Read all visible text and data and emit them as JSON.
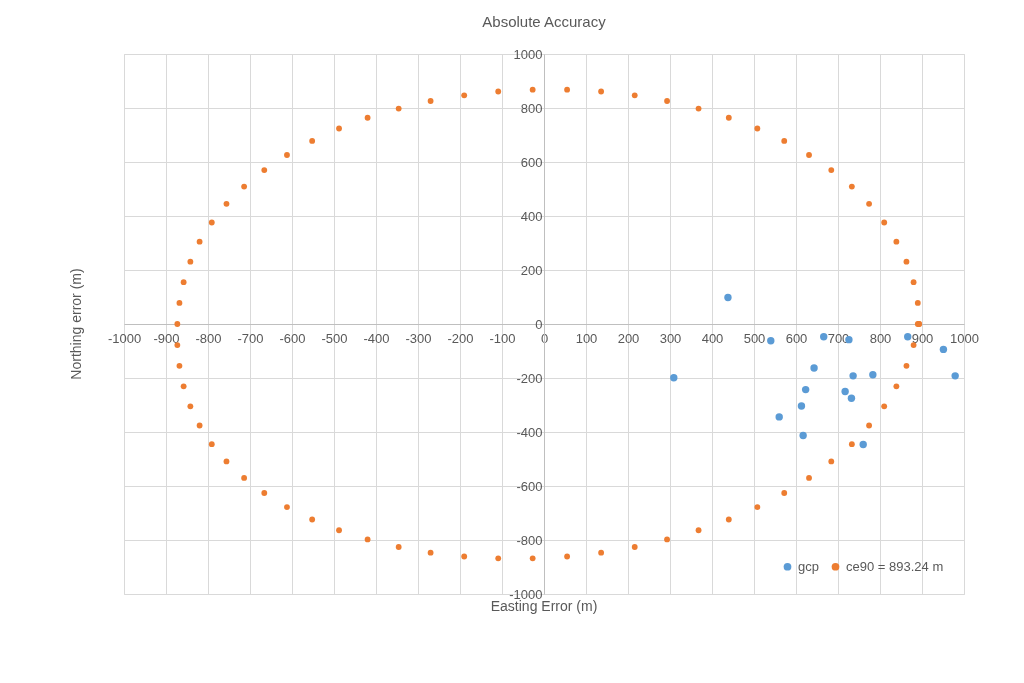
{
  "chart_data": {
    "type": "scatter",
    "title": "Absolute Accuracy",
    "xlabel": "Easting Error (m)",
    "ylabel": "Northing error (m)",
    "xlim": [
      -1000,
      1000
    ],
    "xticks": [
      -1000,
      -900,
      -800,
      -700,
      -600,
      -500,
      -400,
      -300,
      -200,
      -100,
      0,
      100,
      200,
      300,
      400,
      500,
      600,
      700,
      800,
      900,
      1000
    ],
    "ylim": [
      -1000,
      1000
    ],
    "yticks": [
      -1000,
      -800,
      -600,
      -400,
      -200,
      0,
      200,
      400,
      600,
      800,
      1000
    ],
    "grid": true,
    "legend": "bottom right",
    "marker": "circle",
    "series": [
      {
        "name": "gcp",
        "color": "#5b9bd5",
        "x": [
          438,
          540,
          309,
          666,
          726,
          866,
          951,
          979,
          643,
          736,
          783,
          623,
          717,
          732,
          613,
          560,
          617,
          760
        ],
        "values": [
          98,
          -62,
          -199,
          -47,
          -58,
          -47,
          -94,
          -192,
          -163,
          -192,
          -188,
          -243,
          -250,
          -275,
          -304,
          -344,
          -413,
          -446
        ]
      },
      {
        "name": "ce90 = 893.24 m",
        "color": "#ed7d31",
        "x": [
          893,
          890,
          880,
          863,
          839,
          810,
          774,
          733,
          684,
          631,
          572,
          508,
          440,
          368,
          293,
          216,
          136,
          55,
          -27,
          -109,
          -190,
          -270,
          -346,
          -420,
          -488,
          -552,
          -612,
          -666,
          -714,
          -756,
          -791,
          -820,
          -842,
          -858,
          -868,
          -873,
          -873,
          -868,
          -858,
          -842,
          -820,
          -791,
          -756,
          -714,
          -666,
          -612,
          -552,
          -488,
          -420,
          -346,
          -270,
          -190,
          -109,
          -27,
          55,
          136,
          216,
          293,
          368,
          440,
          508,
          572,
          631,
          684,
          733,
          774,
          810,
          839,
          863,
          880,
          890,
          893
        ],
        "values": [
          0,
          78,
          155,
          231,
          305,
          376,
          445,
          509,
          570,
          626,
          678,
          724,
          764,
          798,
          826,
          847,
          861,
          868,
          868,
          861,
          847,
          826,
          798,
          764,
          724,
          678,
          626,
          570,
          509,
          445,
          376,
          305,
          231,
          155,
          78,
          0,
          -78,
          -155,
          -231,
          -305,
          -376,
          -445,
          -509,
          -570,
          -626,
          -678,
          -724,
          -764,
          -798,
          -826,
          -847,
          -861,
          -868,
          -868,
          -861,
          -847,
          -826,
          -798,
          -764,
          -724,
          -678,
          -626,
          -570,
          -509,
          -445,
          -376,
          -305,
          -231,
          -155,
          -78,
          0,
          0
        ]
      }
    ]
  }
}
